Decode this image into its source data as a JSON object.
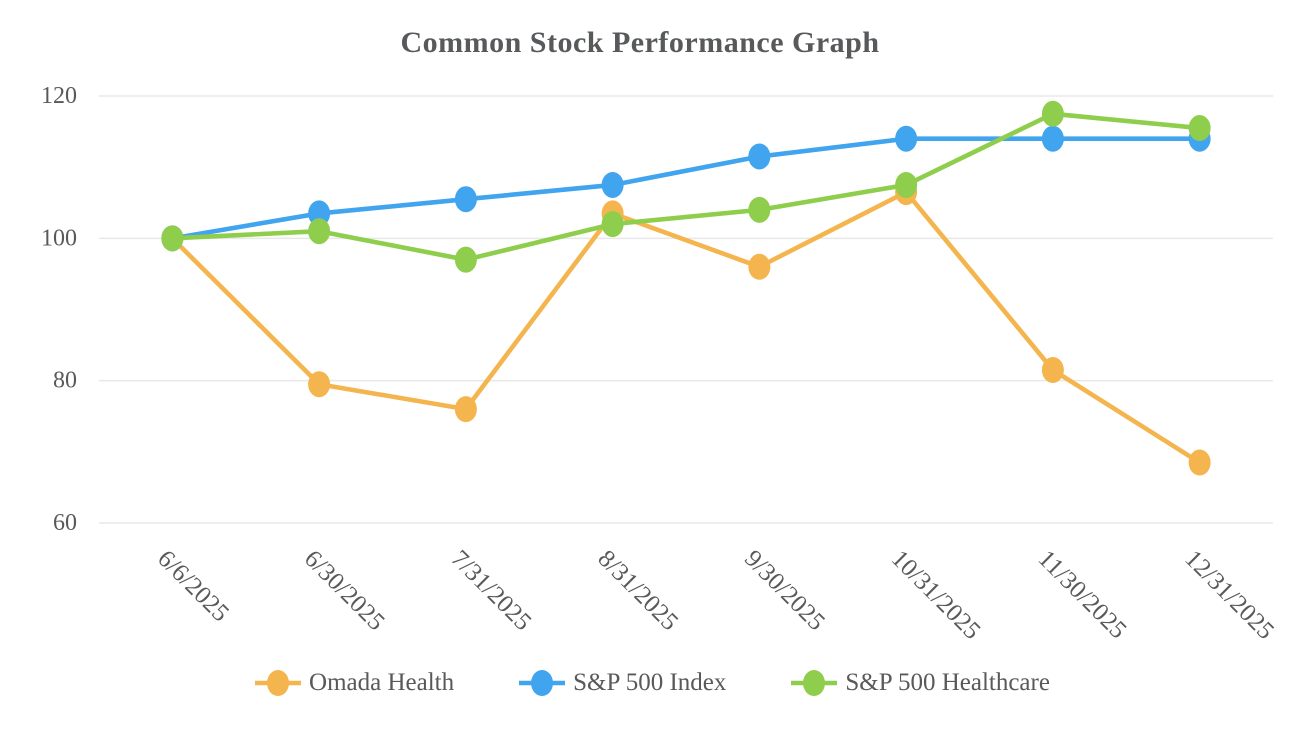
{
  "title": "Common Stock Performance Graph",
  "chart_data": {
    "type": "line",
    "title": "Common Stock Performance Graph",
    "categories": [
      "6/6/2025",
      "6/30/2025",
      "7/31/2025",
      "8/31/2025",
      "9/30/2025",
      "10/31/2025",
      "11/30/2025",
      "12/31/2025"
    ],
    "series": [
      {
        "name": "Omada Health",
        "color": "#F5B54E",
        "values": [
          100,
          79.5,
          76,
          103.5,
          96,
          106.5,
          81.5,
          68.5
        ]
      },
      {
        "name": "S&P 500 Index",
        "color": "#41A4EE",
        "values": [
          100,
          103.5,
          105.5,
          107.5,
          111.5,
          114,
          114,
          114
        ]
      },
      {
        "name": "S&P 500 Healthcare",
        "color": "#8FCE4C",
        "values": [
          100,
          101,
          97,
          102,
          104,
          107.5,
          117.5,
          115.5
        ]
      }
    ],
    "xlabel": "",
    "ylabel": "",
    "ylim": [
      60,
      120
    ],
    "yticks": [
      120,
      100,
      80,
      60
    ],
    "grid": "horizontal",
    "legend_position": "bottom"
  },
  "style": {
    "text_color": "#595959",
    "title_color": "#58595B",
    "gridline_color": "#E8E8E8",
    "background": "#FFFFFF"
  }
}
